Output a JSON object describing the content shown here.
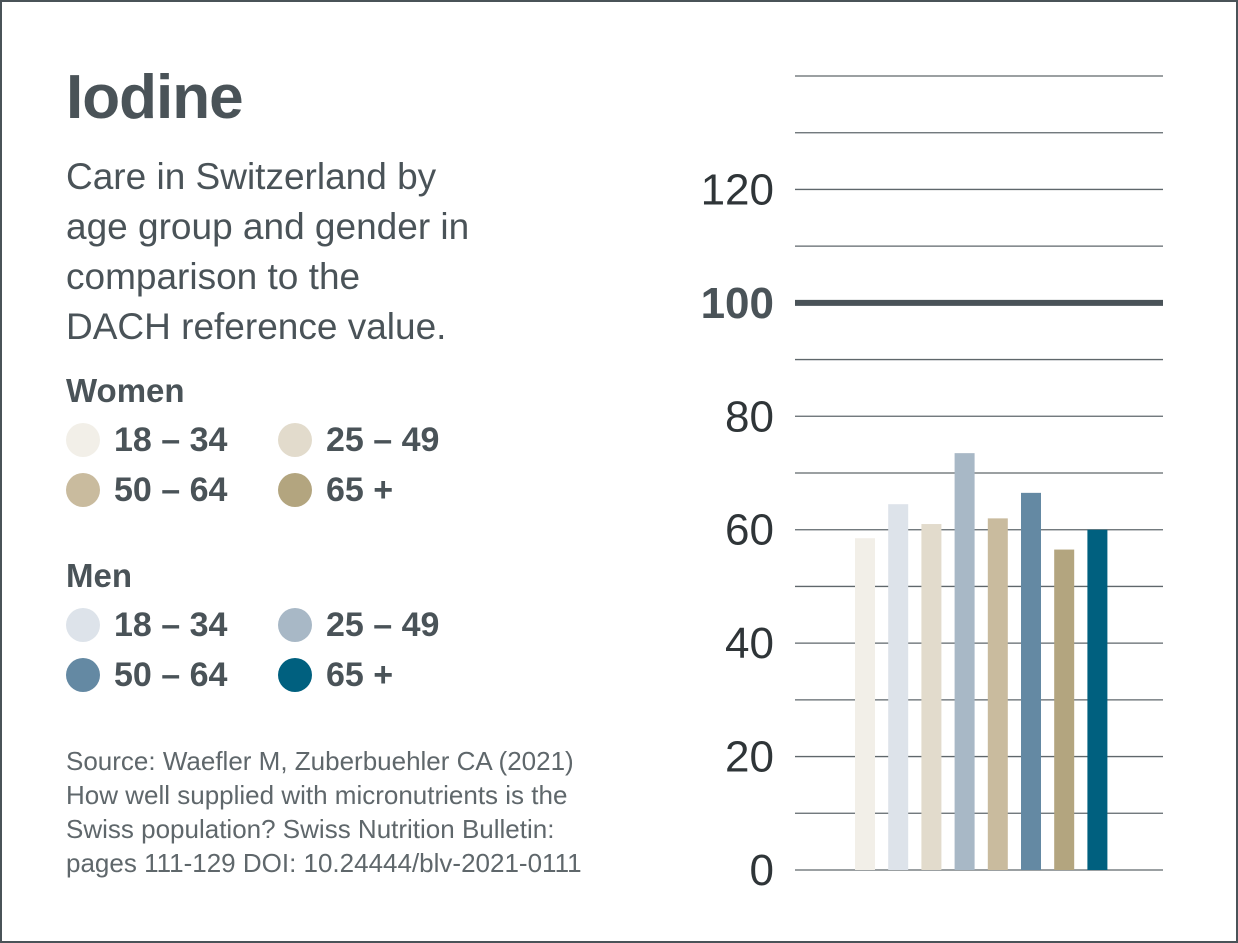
{
  "title": "Iodine",
  "subtitle_lines": [
    "Care in Switzerland by",
    "age group and gender in",
    "comparison to the",
    "DACH reference value."
  ],
  "legend": {
    "women": {
      "heading": "Women",
      "items": [
        {
          "label": "18 – 34",
          "color": "#f2efe8"
        },
        {
          "label": "25 – 49",
          "color": "#e2dbcc"
        },
        {
          "label": "50 – 64",
          "color": "#c9bb9e"
        },
        {
          "label": "65 +",
          "color": "#b3a57f"
        }
      ]
    },
    "men": {
      "heading": "Men",
      "items": [
        {
          "label": "18 – 34",
          "color": "#dde3ea"
        },
        {
          "label": "25 – 49",
          "color": "#a8b8c6"
        },
        {
          "label": "50 – 64",
          "color": "#6489a3"
        },
        {
          "label": "65 +",
          "color": "#00607f"
        }
      ]
    }
  },
  "source_lines": [
    "Source: Waefler M, Zuberbuehler CA (2021)",
    "How well supplied with micronutrients is the",
    "Swiss population? Swiss Nutrition Bulletin:",
    "pages 111-129 DOI: 10.24444/blv-2021-0111"
  ],
  "chart_data": {
    "type": "bar",
    "title": "Iodine",
    "xlabel": "",
    "ylabel": "",
    "ylim": [
      0,
      140
    ],
    "gridline_step": 10,
    "yticks": [
      0,
      20,
      40,
      60,
      80,
      100,
      120
    ],
    "reference_line": {
      "value": 100,
      "color": "#4a5358"
    },
    "categories": [
      "Women 18 – 34",
      "Men 18 – 34",
      "Women 25 – 49",
      "Men 25 – 49",
      "Women 50 – 64",
      "Men 50 – 64",
      "Women 65 +",
      "Men 65 +"
    ],
    "values": [
      58.5,
      64.5,
      61,
      73.5,
      62,
      66.5,
      56.5,
      60
    ],
    "colors": [
      "#f2efe8",
      "#dde3ea",
      "#e2dbcc",
      "#a8b8c6",
      "#c9bb9e",
      "#6489a3",
      "#b3a57f",
      "#00607f"
    ]
  }
}
